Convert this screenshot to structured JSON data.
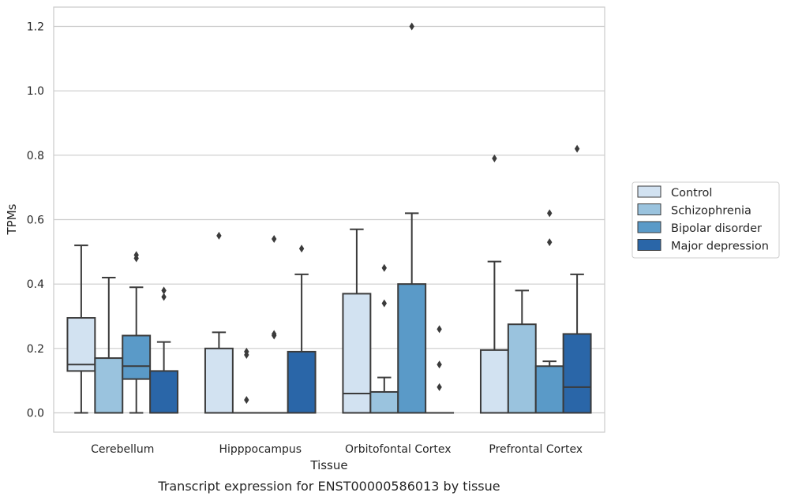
{
  "chart_data": {
    "type": "box",
    "title": "",
    "caption": "Transcript expression for ENST00000586013 by tissue",
    "xlabel": "Tissue",
    "ylabel": "TPMs",
    "ylim": [
      -0.06,
      1.26
    ],
    "yticks": [
      0.0,
      0.2,
      0.4,
      0.6,
      0.8,
      1.0,
      1.2
    ],
    "ytick_labels": [
      "0.0",
      "0.2",
      "0.4",
      "0.6",
      "0.8",
      "1.0",
      "1.2"
    ],
    "grid": "horizontal",
    "legend_position": "right",
    "categories": [
      "Cerebellum",
      "Hipppocampus",
      "Orbitofontal Cortex",
      "Prefrontal Cortex"
    ],
    "series": [
      {
        "name": "Control",
        "color": "#d2e2f1",
        "boxes": [
          {
            "q1": 0.13,
            "median": 0.15,
            "q3": 0.295,
            "whisker_low": 0.0,
            "whisker_high": 0.52,
            "outliers": []
          },
          {
            "q1": 0.0,
            "median": 0.0,
            "q3": 0.2,
            "whisker_low": 0.0,
            "whisker_high": 0.25,
            "outliers": [
              0.55
            ]
          },
          {
            "q1": 0.0,
            "median": 0.06,
            "q3": 0.37,
            "whisker_low": 0.0,
            "whisker_high": 0.57,
            "outliers": []
          },
          {
            "q1": 0.0,
            "median": 0.0,
            "q3": 0.195,
            "whisker_low": 0.0,
            "whisker_high": 0.47,
            "outliers": [
              0.79
            ]
          }
        ]
      },
      {
        "name": "Schizophrenia",
        "color": "#9ac3de",
        "boxes": [
          {
            "q1": 0.0,
            "median": 0.0,
            "q3": 0.17,
            "whisker_low": 0.0,
            "whisker_high": 0.42,
            "outliers": []
          },
          {
            "q1": 0.0,
            "median": 0.0,
            "q3": 0.0,
            "whisker_low": 0.0,
            "whisker_high": 0.0,
            "outliers": [
              0.04,
              0.18,
              0.19
            ]
          },
          {
            "q1": 0.0,
            "median": 0.0,
            "q3": 0.065,
            "whisker_low": 0.0,
            "whisker_high": 0.11,
            "outliers": [
              0.34,
              0.45
            ]
          },
          {
            "q1": 0.0,
            "median": 0.0,
            "q3": 0.275,
            "whisker_low": 0.0,
            "whisker_high": 0.38,
            "outliers": []
          }
        ]
      },
      {
        "name": "Bipolar disorder",
        "color": "#5a9ac8",
        "boxes": [
          {
            "q1": 0.105,
            "median": 0.145,
            "q3": 0.24,
            "whisker_low": 0.0,
            "whisker_high": 0.39,
            "outliers": [
              0.48,
              0.49
            ]
          },
          {
            "q1": 0.0,
            "median": 0.0,
            "q3": 0.0,
            "whisker_low": 0.0,
            "whisker_high": 0.0,
            "outliers": [
              0.24,
              0.245,
              0.54
            ]
          },
          {
            "q1": 0.0,
            "median": 0.0,
            "q3": 0.4,
            "whisker_low": 0.0,
            "whisker_high": 0.62,
            "outliers": [
              1.2
            ]
          },
          {
            "q1": 0.0,
            "median": 0.0,
            "q3": 0.145,
            "whisker_low": 0.0,
            "whisker_high": 0.16,
            "outliers": [
              0.53,
              0.62
            ]
          }
        ]
      },
      {
        "name": "Major depression",
        "color": "#2a66a8",
        "boxes": [
          {
            "q1": 0.0,
            "median": 0.0,
            "q3": 0.13,
            "whisker_low": 0.0,
            "whisker_high": 0.22,
            "outliers": [
              0.36,
              0.38
            ]
          },
          {
            "q1": 0.0,
            "median": 0.0,
            "q3": 0.19,
            "whisker_low": 0.0,
            "whisker_high": 0.43,
            "outliers": [
              0.51
            ]
          },
          {
            "q1": 0.0,
            "median": 0.0,
            "q3": 0.0,
            "whisker_low": 0.0,
            "whisker_high": 0.0,
            "outliers": [
              0.08,
              0.15,
              0.26
            ]
          },
          {
            "q1": 0.0,
            "median": 0.08,
            "q3": 0.245,
            "whisker_low": 0.0,
            "whisker_high": 0.43,
            "outliers": [
              0.82
            ]
          }
        ]
      }
    ]
  }
}
